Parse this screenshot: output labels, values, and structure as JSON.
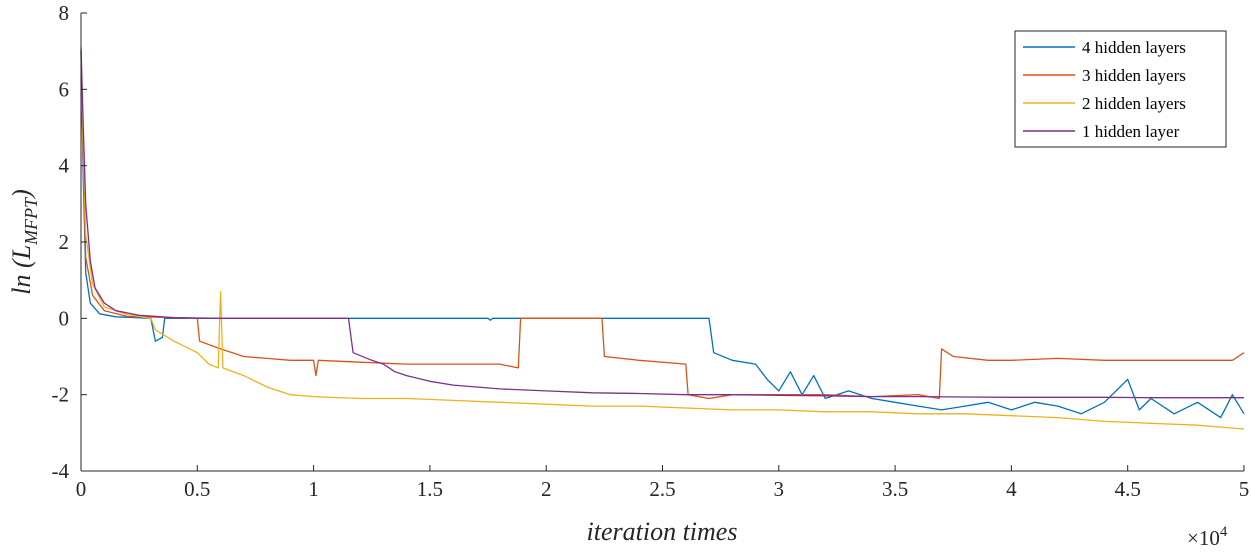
{
  "chart_data": {
    "type": "line",
    "title": "",
    "xlabel": "iteration times",
    "ylabel_main": "ln (L",
    "ylabel_sub": "MFPT",
    "ylabel_close": ")",
    "x_exponent_base": "×10",
    "x_exponent_power": "4",
    "xlim": [
      0,
      5
    ],
    "ylim": [
      -4,
      8
    ],
    "x_ticks": [
      0,
      0.5,
      1,
      1.5,
      2,
      2.5,
      3,
      3.5,
      4,
      4.5,
      5
    ],
    "x_tick_labels": [
      "0",
      "0.5",
      "1",
      "1.5",
      "2",
      "2.5",
      "3",
      "3.5",
      "4",
      "4.5",
      "5"
    ],
    "y_ticks": [
      8,
      6,
      4,
      2,
      0,
      -2,
      -4
    ],
    "y_tick_labels": [
      "8",
      "6",
      "4",
      "2",
      "0",
      "-2",
      "-4"
    ],
    "legend_position": "top-right",
    "series": [
      {
        "name": "4 hidden layers",
        "color": "#0072BD",
        "points": [
          [
            0,
            7.0
          ],
          [
            0.01,
            3.6
          ],
          [
            0.02,
            1.2
          ],
          [
            0.04,
            0.4
          ],
          [
            0.08,
            0.12
          ],
          [
            0.15,
            0.04
          ],
          [
            0.3,
            0.0
          ],
          [
            0.32,
            -0.6
          ],
          [
            0.35,
            -0.5
          ],
          [
            0.36,
            0.0
          ],
          [
            1.75,
            0.0
          ],
          [
            1.76,
            -0.05
          ],
          [
            1.77,
            0.0
          ],
          [
            2.7,
            0.0
          ],
          [
            2.72,
            -0.9
          ],
          [
            2.8,
            -1.1
          ],
          [
            2.9,
            -1.2
          ],
          [
            2.95,
            -1.6
          ],
          [
            3.0,
            -1.9
          ],
          [
            3.05,
            -1.4
          ],
          [
            3.1,
            -2.0
          ],
          [
            3.15,
            -1.5
          ],
          [
            3.2,
            -2.1
          ],
          [
            3.3,
            -1.9
          ],
          [
            3.4,
            -2.1
          ],
          [
            3.5,
            -2.2
          ],
          [
            3.6,
            -2.3
          ],
          [
            3.7,
            -2.4
          ],
          [
            3.8,
            -2.3
          ],
          [
            3.9,
            -2.2
          ],
          [
            4.0,
            -2.4
          ],
          [
            4.1,
            -2.2
          ],
          [
            4.2,
            -2.3
          ],
          [
            4.3,
            -2.5
          ],
          [
            4.4,
            -2.2
          ],
          [
            4.5,
            -1.6
          ],
          [
            4.55,
            -2.4
          ],
          [
            4.6,
            -2.1
          ],
          [
            4.7,
            -2.5
          ],
          [
            4.8,
            -2.2
          ],
          [
            4.9,
            -2.6
          ],
          [
            4.95,
            -2.0
          ],
          [
            5.0,
            -2.5
          ]
        ]
      },
      {
        "name": "3 hidden layers",
        "color": "#D95319",
        "points": [
          [
            0,
            7.0
          ],
          [
            0.01,
            4.0
          ],
          [
            0.02,
            1.6
          ],
          [
            0.05,
            0.6
          ],
          [
            0.1,
            0.2
          ],
          [
            0.2,
            0.05
          ],
          [
            0.5,
            0.0
          ],
          [
            0.51,
            -0.6
          ],
          [
            0.6,
            -0.8
          ],
          [
            0.7,
            -1.0
          ],
          [
            0.8,
            -1.05
          ],
          [
            0.9,
            -1.1
          ],
          [
            1.0,
            -1.1
          ],
          [
            1.01,
            -1.5
          ],
          [
            1.02,
            -1.1
          ],
          [
            1.2,
            -1.15
          ],
          [
            1.4,
            -1.2
          ],
          [
            1.6,
            -1.2
          ],
          [
            1.8,
            -1.2
          ],
          [
            1.88,
            -1.3
          ],
          [
            1.89,
            0.0
          ],
          [
            2.24,
            0.0
          ],
          [
            2.25,
            -1.0
          ],
          [
            2.4,
            -1.1
          ],
          [
            2.6,
            -1.2
          ],
          [
            2.61,
            -2.0
          ],
          [
            2.7,
            -2.1
          ],
          [
            2.8,
            -2.0
          ],
          [
            3.0,
            -2.0
          ],
          [
            3.2,
            -2.0
          ],
          [
            3.4,
            -2.05
          ],
          [
            3.6,
            -2.0
          ],
          [
            3.69,
            -2.1
          ],
          [
            3.7,
            -0.8
          ],
          [
            3.75,
            -1.0
          ],
          [
            3.9,
            -1.1
          ],
          [
            4.0,
            -1.1
          ],
          [
            4.2,
            -1.05
          ],
          [
            4.4,
            -1.1
          ],
          [
            4.6,
            -1.1
          ],
          [
            4.8,
            -1.1
          ],
          [
            4.95,
            -1.1
          ],
          [
            5.0,
            -0.9
          ]
        ]
      },
      {
        "name": "2 hidden layers",
        "color": "#EDB120",
        "points": [
          [
            0,
            7.0
          ],
          [
            0.01,
            4.5
          ],
          [
            0.02,
            2.2
          ],
          [
            0.05,
            0.9
          ],
          [
            0.1,
            0.3
          ],
          [
            0.2,
            0.1
          ],
          [
            0.3,
            0.0
          ],
          [
            0.32,
            -0.3
          ],
          [
            0.4,
            -0.6
          ],
          [
            0.5,
            -0.9
          ],
          [
            0.55,
            -1.2
          ],
          [
            0.59,
            -1.3
          ],
          [
            0.6,
            0.7
          ],
          [
            0.61,
            -1.3
          ],
          [
            0.7,
            -1.5
          ],
          [
            0.8,
            -1.8
          ],
          [
            0.9,
            -2.0
          ],
          [
            1.0,
            -2.05
          ],
          [
            1.2,
            -2.1
          ],
          [
            1.4,
            -2.1
          ],
          [
            1.6,
            -2.15
          ],
          [
            1.8,
            -2.2
          ],
          [
            2.0,
            -2.25
          ],
          [
            2.2,
            -2.3
          ],
          [
            2.4,
            -2.3
          ],
          [
            2.6,
            -2.35
          ],
          [
            2.8,
            -2.4
          ],
          [
            3.0,
            -2.4
          ],
          [
            3.2,
            -2.45
          ],
          [
            3.4,
            -2.45
          ],
          [
            3.6,
            -2.5
          ],
          [
            3.8,
            -2.5
          ],
          [
            4.0,
            -2.55
          ],
          [
            4.2,
            -2.6
          ],
          [
            4.4,
            -2.7
          ],
          [
            4.6,
            -2.75
          ],
          [
            4.8,
            -2.8
          ],
          [
            4.9,
            -2.85
          ],
          [
            5.0,
            -2.9
          ]
        ]
      },
      {
        "name": "1 hidden layer",
        "color": "#7E2F8E",
        "points": [
          [
            0,
            7.1
          ],
          [
            0.01,
            5.0
          ],
          [
            0.02,
            3.0
          ],
          [
            0.04,
            1.5
          ],
          [
            0.06,
            0.8
          ],
          [
            0.1,
            0.4
          ],
          [
            0.15,
            0.2
          ],
          [
            0.25,
            0.08
          ],
          [
            0.4,
            0.02
          ],
          [
            0.6,
            0.0
          ],
          [
            1.0,
            0.0
          ],
          [
            1.15,
            0.0
          ],
          [
            1.17,
            -0.9
          ],
          [
            1.25,
            -1.1
          ],
          [
            1.3,
            -1.2
          ],
          [
            1.35,
            -1.4
          ],
          [
            1.4,
            -1.5
          ],
          [
            1.5,
            -1.65
          ],
          [
            1.6,
            -1.75
          ],
          [
            1.8,
            -1.85
          ],
          [
            2.0,
            -1.9
          ],
          [
            2.2,
            -1.95
          ],
          [
            2.4,
            -1.97
          ],
          [
            2.6,
            -2.0
          ],
          [
            2.8,
            -2.0
          ],
          [
            3.0,
            -2.02
          ],
          [
            3.2,
            -2.03
          ],
          [
            3.4,
            -2.05
          ],
          [
            3.6,
            -2.05
          ],
          [
            3.8,
            -2.06
          ],
          [
            4.0,
            -2.07
          ],
          [
            4.2,
            -2.07
          ],
          [
            4.4,
            -2.07
          ],
          [
            4.6,
            -2.08
          ],
          [
            4.8,
            -2.08
          ],
          [
            5.0,
            -2.08
          ]
        ]
      }
    ]
  }
}
